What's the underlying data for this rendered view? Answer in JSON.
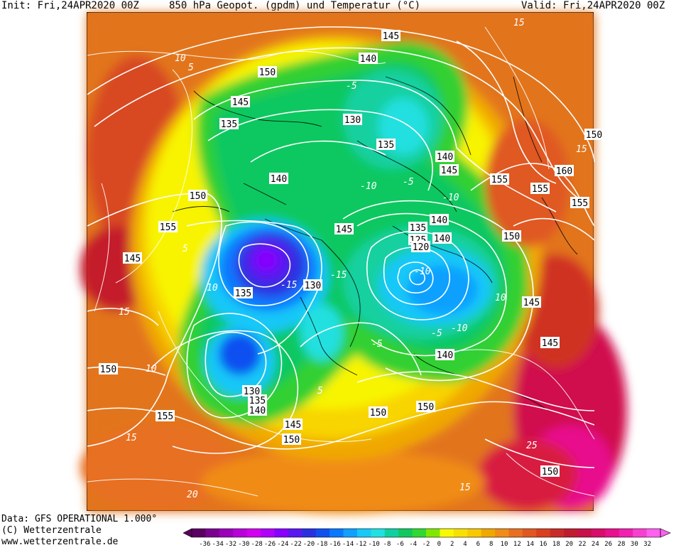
{
  "header": {
    "init": "Init: Fri,24APR2020 00Z",
    "title": "850 hPa Geopot. (gpdm) und Temperatur (°C)",
    "valid": "Valid: Fri,24APR2020 00Z"
  },
  "footer": {
    "data_source": "Data: GFS OPERATIONAL 1.000°",
    "copyright": "(C) Wetterzentrale",
    "website": "www.wetterzentrale.de"
  },
  "legend": {
    "ticks": [
      "-36",
      "-34",
      "-32",
      "-30",
      "-28",
      "-26",
      "-24",
      "-22",
      "-20",
      "-18",
      "-16",
      "-14",
      "-12",
      "-10",
      "-8",
      "-6",
      "-4",
      "-2",
      "0",
      "2",
      "4",
      "6",
      "8",
      "10",
      "12",
      "14",
      "16",
      "18",
      "20",
      "22",
      "24",
      "26",
      "28",
      "30",
      "32"
    ],
    "colors": [
      "#5a0060",
      "#7a0090",
      "#9a00b8",
      "#b800d8",
      "#d200f0",
      "#b000f8",
      "#8800ff",
      "#5a18f0",
      "#2a30e0",
      "#1050f0",
      "#0878ff",
      "#10a0ff",
      "#18c8f8",
      "#20e0e0",
      "#10d0a0",
      "#10c860",
      "#30d830",
      "#80e800",
      "#f8f800",
      "#f8e000",
      "#f8c800",
      "#f0a800",
      "#f08c18",
      "#e87020",
      "#e05820",
      "#d84020",
      "#c82c28",
      "#c01c30",
      "#c8104a",
      "#d80c6a",
      "#e8108c",
      "#f020b0",
      "#f840d0",
      "#ff60f0"
    ]
  },
  "map": {
    "height_contour_labels": [
      {
        "text": "145"
      },
      {
        "text": "140"
      },
      {
        "text": "150"
      },
      {
        "text": "145"
      },
      {
        "text": "135"
      },
      {
        "text": "130"
      },
      {
        "text": "135"
      },
      {
        "text": "140"
      },
      {
        "text": "145"
      },
      {
        "text": "150"
      },
      {
        "text": "140"
      },
      {
        "text": "155"
      },
      {
        "text": "145"
      },
      {
        "text": "135"
      },
      {
        "text": "140"
      },
      {
        "text": "145"
      },
      {
        "text": "135"
      },
      {
        "text": "130"
      },
      {
        "text": "125"
      },
      {
        "text": "120"
      },
      {
        "text": "140"
      },
      {
        "text": "150"
      },
      {
        "text": "155"
      },
      {
        "text": "155"
      },
      {
        "text": "160"
      },
      {
        "text": "155"
      },
      {
        "text": "150"
      },
      {
        "text": "145"
      },
      {
        "text": "145"
      },
      {
        "text": "140"
      },
      {
        "text": "150"
      },
      {
        "text": "150"
      },
      {
        "text": "130"
      },
      {
        "text": "135"
      },
      {
        "text": "140"
      },
      {
        "text": "150"
      },
      {
        "text": "155"
      },
      {
        "text": "145"
      },
      {
        "text": "150"
      },
      {
        "text": "150"
      }
    ],
    "temperature_contour_labels": [
      {
        "text": "15"
      },
      {
        "text": "10"
      },
      {
        "text": "5"
      },
      {
        "text": "-5"
      },
      {
        "text": "-10"
      },
      {
        "text": "-15"
      },
      {
        "text": "-10"
      },
      {
        "text": "-5"
      },
      {
        "text": "5"
      },
      {
        "text": "10"
      },
      {
        "text": "15"
      },
      {
        "text": "-5"
      },
      {
        "text": "-10"
      },
      {
        "text": "-5"
      },
      {
        "text": "5"
      },
      {
        "text": "10"
      },
      {
        "text": "15"
      },
      {
        "text": "20"
      },
      {
        "text": "25"
      },
      {
        "text": "15"
      },
      {
        "text": "10"
      },
      {
        "text": "-15"
      },
      {
        "text": "-10"
      },
      {
        "text": "15"
      }
    ]
  }
}
